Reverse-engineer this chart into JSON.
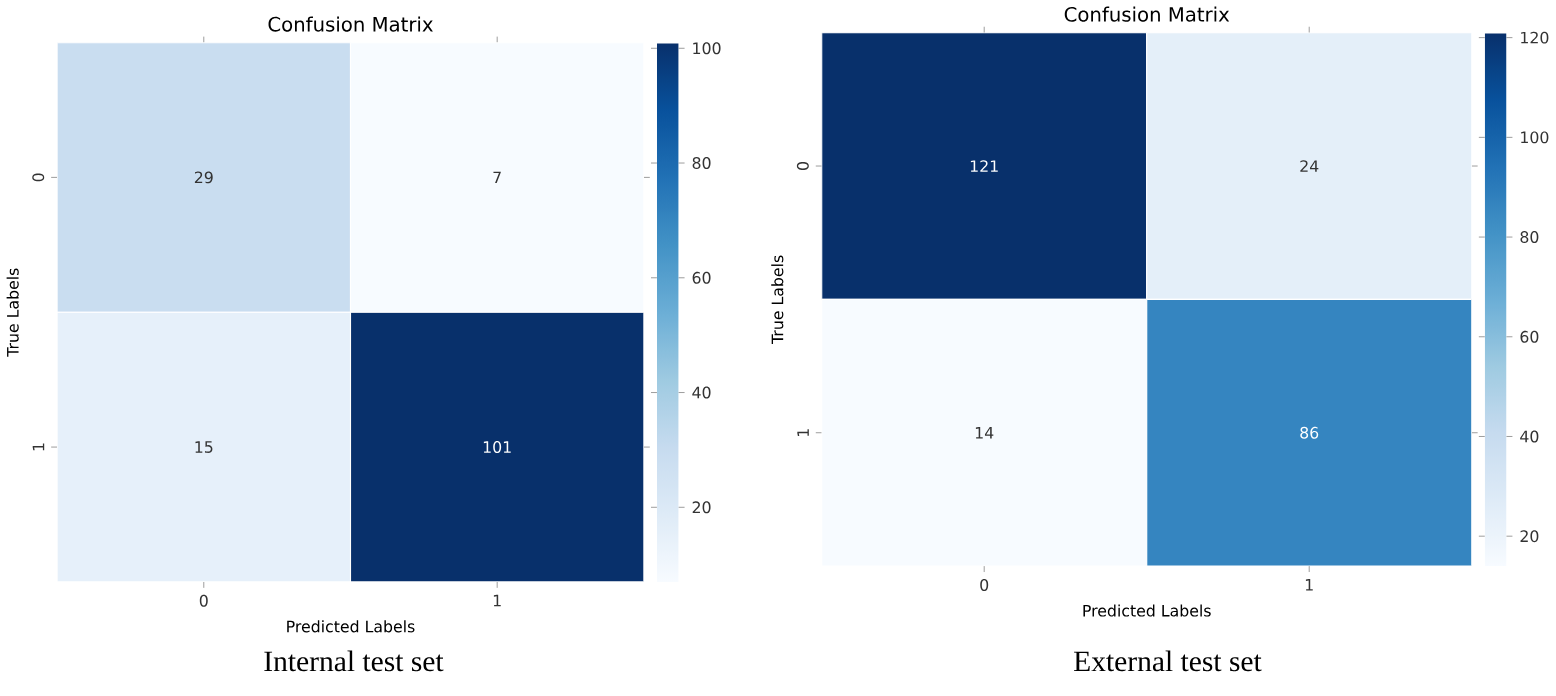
{
  "chart_data": [
    {
      "type": "heatmap",
      "title": "Confusion Matrix",
      "xlabel": "Predicted Labels",
      "ylabel": "True Labels",
      "categories": [
        "0",
        "1"
      ],
      "y_categories": [
        "0",
        "1"
      ],
      "cells": [
        [
          29,
          7
        ],
        [
          15,
          101
        ]
      ],
      "data_labels": true,
      "clim": [
        7,
        101
      ],
      "cticks": [
        20,
        40,
        60,
        80,
        100
      ],
      "annotations": [
        "Internal test set"
      ]
    },
    {
      "type": "heatmap",
      "title": "Confusion Matrix",
      "xlabel": "Predicted Labels",
      "ylabel": "True Labels",
      "categories": [
        "0",
        "1"
      ],
      "y_categories": [
        "0",
        "1"
      ],
      "cells": [
        [
          121,
          24
        ],
        [
          14,
          86
        ]
      ],
      "data_labels": true,
      "clim": [
        14,
        121
      ],
      "cticks": [
        20,
        40,
        60,
        80,
        100,
        120
      ],
      "annotations": [
        "External test set"
      ]
    }
  ]
}
